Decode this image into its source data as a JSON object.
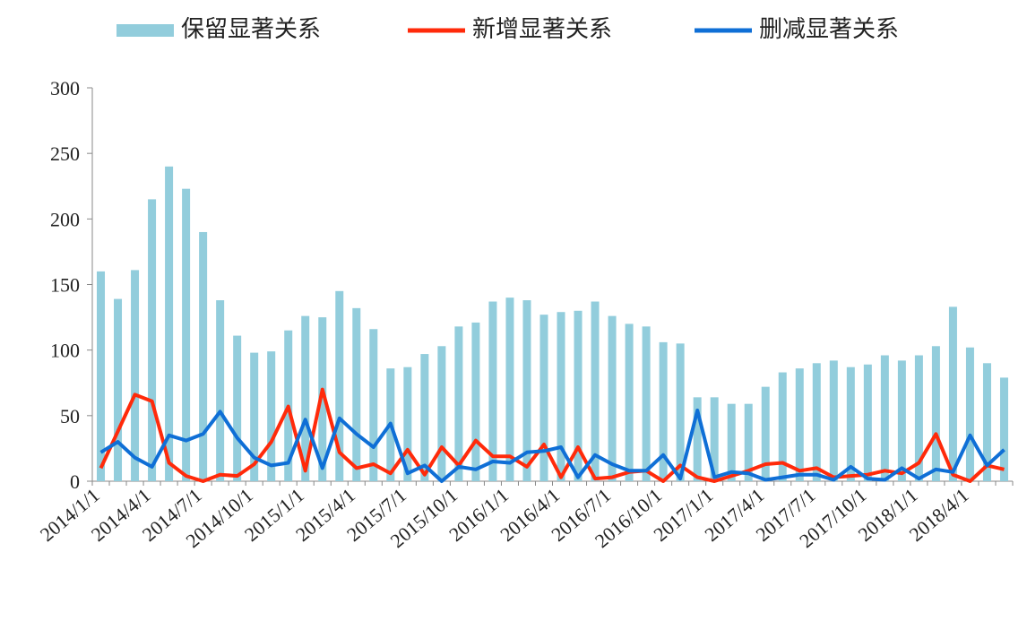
{
  "chart_data": {
    "type": "bar_line",
    "categories": [
      "2014/1/1",
      null,
      null,
      "2014/4/1",
      null,
      null,
      "2014/7/1",
      null,
      null,
      "2014/10/1",
      null,
      null,
      "2015/1/1",
      null,
      null,
      "2015/4/1",
      null,
      null,
      "2015/7/1",
      null,
      null,
      "2015/10/1",
      null,
      null,
      "2016/1/1",
      null,
      null,
      "2016/4/1",
      null,
      null,
      "2016/7/1",
      null,
      null,
      "2016/10/1",
      null,
      null,
      "2017/1/1",
      null,
      null,
      "2017/4/1",
      null,
      null,
      "2017/7/1",
      null,
      null,
      "2017/10/1",
      null,
      null,
      "2018/1/1",
      null,
      null,
      "2018/4/1",
      null,
      null
    ],
    "series": [
      {
        "name": "保留显著关系",
        "color": "#92cddc",
        "kind": "bar",
        "values": [
          160,
          139,
          161,
          215,
          240,
          223,
          190,
          138,
          111,
          98,
          99,
          115,
          126,
          125,
          145,
          132,
          116,
          86,
          87,
          97,
          103,
          118,
          121,
          137,
          140,
          138,
          127,
          129,
          130,
          137,
          126,
          120,
          118,
          106,
          105,
          64,
          64,
          59,
          59,
          72,
          83,
          86,
          90,
          92,
          87,
          89,
          96,
          92,
          96,
          103,
          133,
          102,
          90,
          79
        ]
      },
      {
        "name": "新增显著关系",
        "color": "#ff2a0a",
        "kind": "line",
        "values": [
          10,
          38,
          66,
          61,
          14,
          4,
          0,
          5,
          4,
          13,
          30,
          57,
          8,
          70,
          22,
          10,
          13,
          6,
          24,
          5,
          26,
          12,
          31,
          19,
          19,
          11,
          28,
          3,
          26,
          2,
          3,
          7,
          8,
          0,
          12,
          3,
          0,
          4,
          8,
          13,
          14,
          8,
          10,
          3,
          4,
          5,
          8,
          6,
          14,
          36,
          5,
          0,
          12,
          9
        ]
      },
      {
        "name": "删减显著关系",
        "color": "#0f6fd6",
        "kind": "line",
        "values": [
          22,
          30,
          18,
          11,
          35,
          31,
          36,
          53,
          33,
          18,
          12,
          14,
          47,
          10,
          48,
          36,
          26,
          44,
          6,
          12,
          0,
          11,
          9,
          15,
          14,
          22,
          23,
          26,
          3,
          20,
          13,
          8,
          8,
          20,
          2,
          54,
          3,
          7,
          6,
          1,
          3,
          5,
          5,
          1,
          11,
          2,
          1,
          10,
          2,
          9,
          7,
          35,
          12,
          24
        ]
      }
    ],
    "ylim": [
      0,
      300
    ],
    "yticks": [
      0,
      50,
      100,
      150,
      200,
      250,
      300
    ]
  }
}
